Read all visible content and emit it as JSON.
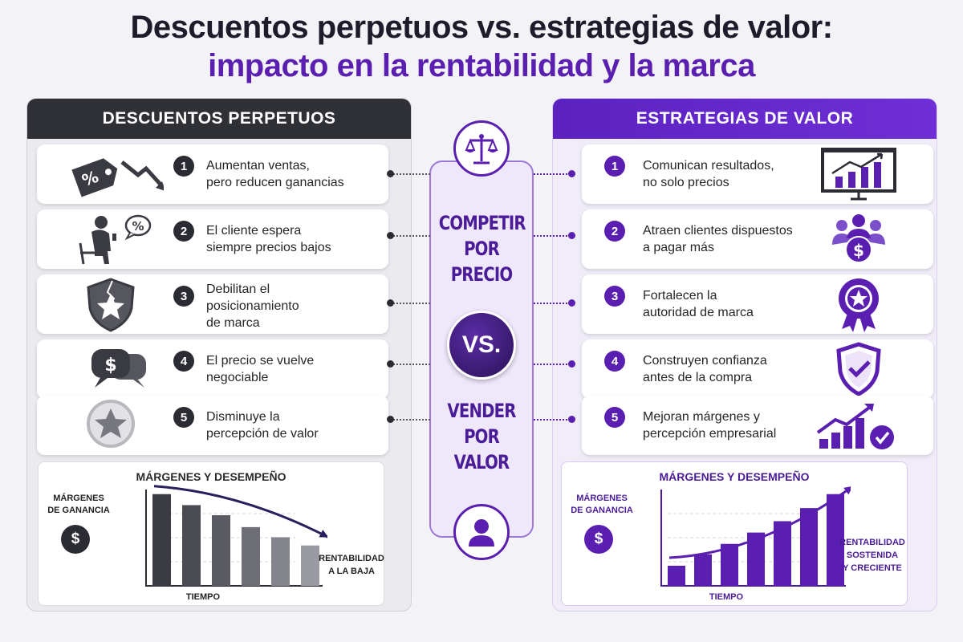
{
  "title": {
    "line1": "Descuentos perpetuos vs. estrategias de valor:",
    "line2": "impacto en la rentabilidad y la marca"
  },
  "left": {
    "header": "DESCUENTOS PERPETUOS",
    "items": [
      {
        "num": "1",
        "text": "Aumentan ventas,\npero reducen ganancias",
        "icon": "discount-tag-down-arrow-icon"
      },
      {
        "num": "2",
        "text": "El cliente espera\nsiempre precios bajos",
        "icon": "customer-phone-icon"
      },
      {
        "num": "3",
        "text": "Debilitan el\nposicionamiento\nde marca",
        "icon": "cracked-shield-icon"
      },
      {
        "num": "4",
        "text": "El precio se vuelve\nnegociable",
        "icon": "dollar-chat-bubbles-icon"
      },
      {
        "num": "5",
        "text": "Disminuye la\npercepción de valor",
        "icon": "faded-star-icon"
      }
    ],
    "chart": {
      "title": "MÁRGENES Y DESEMPEÑO",
      "ylabel": "MÁRGENES\nDE GANANCIA",
      "xlabel": "TIEMPO",
      "annotation": "RENTABILIDAD\nA LA BAJA",
      "dollar": "$"
    }
  },
  "right": {
    "header": "ESTRATEGIAS DE VALOR",
    "items": [
      {
        "num": "1",
        "text": "Comunican resultados,\nno solo precios",
        "icon": "presentation-chart-icon"
      },
      {
        "num": "2",
        "text": "Atraen clientes dispuestos\na pagar más",
        "icon": "clients-dollar-icon"
      },
      {
        "num": "3",
        "text": "Fortalecen la\nautoridad de marca",
        "icon": "award-badge-icon"
      },
      {
        "num": "4",
        "text": "Construyen confianza\nantes de la compra",
        "icon": "shield-check-icon"
      },
      {
        "num": "5",
        "text": "Mejoran márgenes y\npercepción empresarial",
        "icon": "growth-chart-check-icon"
      }
    ],
    "chart": {
      "title": "MÁRGENES Y DESEMPEÑO",
      "ylabel": "MÁRGENES\nDE GANANCIA",
      "xlabel": "TIEMPO",
      "annotation": "RENTABILIDAD\nSOSTENIDA\nY CRECIENTE",
      "dollar": "$"
    }
  },
  "center": {
    "top_icon": "scale-balance-icon",
    "top_text": "COMPETIR\nPOR\nPRECIO",
    "vs": "VS.",
    "bottom_text": "VENDER\nPOR\nVALOR",
    "bottom_icon": "person-icon"
  },
  "chart_data": [
    {
      "type": "bar",
      "title": "MÁRGENES Y DESEMPEÑO",
      "xlabel": "TIEMPO",
      "ylabel": "MÁRGENES DE GANANCIA",
      "values": [
        100,
        88,
        77,
        64,
        53,
        44
      ],
      "trend": "down",
      "color": "#4a4a52"
    },
    {
      "type": "bar",
      "title": "MÁRGENES Y DESEMPEÑO",
      "xlabel": "TIEMPO",
      "ylabel": "MÁRGENES DE GANANCIA",
      "values": [
        23,
        36,
        48,
        61,
        74,
        89,
        105
      ],
      "trend": "up",
      "color": "#5a1fb0"
    }
  ],
  "colors": {
    "dark": "#2f3036",
    "purple": "#5a1fb0",
    "light_purple": "#efe8fb"
  }
}
